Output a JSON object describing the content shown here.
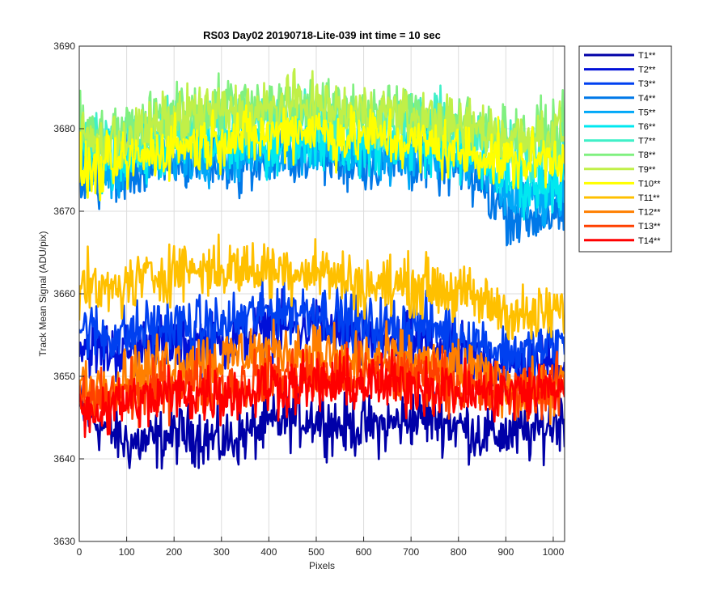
{
  "chart_data": {
    "type": "line",
    "title": "RS03 Day02 20190718-Lite-039 int time = 10 sec",
    "xlabel": "Pixels",
    "ylabel": "Track Mean Signal (ADU/pix)",
    "xlim": [
      0,
      1024
    ],
    "ylim": [
      3630,
      3690
    ],
    "xticks": [
      0,
      100,
      200,
      300,
      400,
      500,
      600,
      700,
      800,
      900,
      1000
    ],
    "yticks": [
      3630,
      3640,
      3650,
      3660,
      3670,
      3680,
      3690
    ],
    "grid": true,
    "legend_position": "outside-top-right",
    "x_anchors": [
      0,
      50,
      100,
      150,
      200,
      250,
      300,
      350,
      400,
      450,
      500,
      550,
      600,
      650,
      700,
      750,
      800,
      850,
      900,
      950,
      1024
    ],
    "series": [
      {
        "name": "T1**",
        "color": "#0000A8",
        "noise": 2.2,
        "values": [
          3646,
          3644,
          3642,
          3642,
          3643,
          3643,
          3642,
          3643,
          3644,
          3645,
          3645,
          3644,
          3644,
          3644,
          3645,
          3645,
          3644,
          3643,
          3643,
          3643,
          3645
        ]
      },
      {
        "name": "T2**",
        "color": "#0010D8",
        "noise": 2.2,
        "values": [
          3654,
          3653,
          3653,
          3654,
          3654,
          3654,
          3654,
          3655,
          3656,
          3656,
          3656,
          3655,
          3654,
          3654,
          3654,
          3654,
          3653,
          3652,
          3651,
          3651,
          3652
        ]
      },
      {
        "name": "T3**",
        "color": "#0040F0",
        "noise": 2.2,
        "values": [
          3656,
          3655,
          3655,
          3656,
          3656,
          3656,
          3656,
          3657,
          3658,
          3658,
          3658,
          3657,
          3656,
          3656,
          3656,
          3656,
          3655,
          3654,
          3653,
          3653,
          3654
        ]
      },
      {
        "name": "T4**",
        "color": "#0078E8",
        "noise": 2.2,
        "values": [
          3674,
          3674,
          3675,
          3675,
          3676,
          3676,
          3676,
          3676,
          3676,
          3677,
          3677,
          3676,
          3676,
          3676,
          3676,
          3676,
          3675,
          3673,
          3670,
          3669,
          3670
        ]
      },
      {
        "name": "T5**",
        "color": "#00A8F8",
        "noise": 2.2,
        "values": [
          3676,
          3675,
          3676,
          3676,
          3677,
          3677,
          3677,
          3677,
          3677,
          3678,
          3678,
          3677,
          3677,
          3677,
          3677,
          3677,
          3676,
          3675,
          3672,
          3671,
          3672
        ]
      },
      {
        "name": "T6**",
        "color": "#00E8F0",
        "noise": 2.2,
        "values": [
          3677,
          3676,
          3677,
          3677,
          3678,
          3678,
          3678,
          3678,
          3678,
          3679,
          3679,
          3678,
          3678,
          3678,
          3678,
          3678,
          3677,
          3676,
          3674,
          3673,
          3674
        ]
      },
      {
        "name": "T7**",
        "color": "#40F0C8",
        "noise": 2.2,
        "values": [
          3679,
          3678,
          3679,
          3679,
          3680,
          3681,
          3681,
          3681,
          3681,
          3682,
          3682,
          3681,
          3681,
          3681,
          3681,
          3681,
          3680,
          3679,
          3678,
          3677,
          3678
        ]
      },
      {
        "name": "T8**",
        "color": "#80F080",
        "noise": 2.2,
        "values": [
          3680,
          3679,
          3680,
          3681,
          3682,
          3682,
          3683,
          3683,
          3683,
          3683,
          3683,
          3682,
          3682,
          3682,
          3682,
          3681,
          3681,
          3680,
          3679,
          3679,
          3680
        ]
      },
      {
        "name": "T9**",
        "color": "#C0F048",
        "noise": 2.2,
        "values": [
          3679,
          3678,
          3679,
          3680,
          3681,
          3682,
          3682,
          3682,
          3682,
          3683,
          3683,
          3682,
          3682,
          3682,
          3681,
          3681,
          3680,
          3680,
          3679,
          3679,
          3680
        ]
      },
      {
        "name": "T10**",
        "color": "#FFFF00",
        "noise": 2.2,
        "values": [
          3675,
          3675,
          3676,
          3677,
          3678,
          3678,
          3679,
          3679,
          3679,
          3680,
          3680,
          3679,
          3679,
          3679,
          3678,
          3678,
          3677,
          3677,
          3676,
          3676,
          3677
        ]
      },
      {
        "name": "T11**",
        "color": "#FFC000",
        "noise": 2.2,
        "values": [
          3661,
          3660,
          3661,
          3662,
          3663,
          3663,
          3663,
          3663,
          3663,
          3663,
          3663,
          3662,
          3661,
          3661,
          3661,
          3661,
          3660,
          3659,
          3658,
          3657,
          3658
        ]
      },
      {
        "name": "T12**",
        "color": "#FF7F00",
        "noise": 2.2,
        "values": [
          3649,
          3649,
          3650,
          3651,
          3652,
          3652,
          3652,
          3653,
          3653,
          3653,
          3653,
          3652,
          3652,
          3652,
          3652,
          3651,
          3651,
          3650,
          3649,
          3648,
          3649
        ]
      },
      {
        "name": "T13**",
        "color": "#FF4000",
        "noise": 2.2,
        "values": [
          3647,
          3647,
          3648,
          3648,
          3649,
          3649,
          3649,
          3649,
          3650,
          3650,
          3650,
          3650,
          3650,
          3650,
          3650,
          3650,
          3649,
          3648,
          3648,
          3648,
          3649
        ]
      },
      {
        "name": "T14**",
        "color": "#FF0000",
        "noise": 2.2,
        "values": [
          3646,
          3646,
          3647,
          3647,
          3648,
          3648,
          3648,
          3648,
          3649,
          3649,
          3649,
          3649,
          3649,
          3649,
          3649,
          3649,
          3648,
          3648,
          3648,
          3648,
          3649
        ]
      }
    ]
  }
}
